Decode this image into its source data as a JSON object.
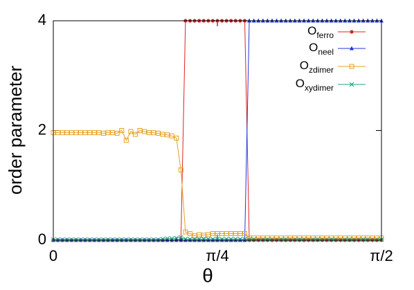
{
  "chart_data": {
    "type": "line",
    "xlabel": "θ",
    "ylabel": "order parameter",
    "x": [
      0,
      1.25,
      2.5,
      3.75,
      5,
      6.25,
      7.5,
      8.75,
      10,
      11.25,
      12.5,
      13.75,
      15,
      16.25,
      17.5,
      18.75,
      20,
      21.25,
      22.5,
      23.75,
      25,
      26.25,
      27.5,
      28.75,
      30,
      31.25,
      32.5,
      33.75,
      35,
      36.25,
      37.5,
      38.75,
      40,
      41.25,
      42.5,
      43.75,
      45,
      46.25,
      47.5,
      48.75,
      50,
      51.25,
      52.5,
      53.75,
      55,
      56.25,
      57.5,
      58.75,
      60,
      61.25,
      62.5,
      63.75,
      65,
      66.25,
      67.5,
      68.75,
      70,
      71.25,
      72.5,
      73.75,
      75,
      76.25,
      77.5,
      78.75,
      80,
      81.25,
      82.5,
      83.75,
      85,
      86.25,
      87.5,
      88.75,
      90
    ],
    "xlim": [
      0,
      90
    ],
    "xticks": [
      0,
      {
        "value": 45,
        "label": "π/4"
      },
      {
        "value": 90,
        "label": "π/2"
      }
    ],
    "ylim": [
      0,
      4
    ],
    "yticks": [
      0,
      2,
      4
    ],
    "legend_position": "top-right",
    "legend_symbol": "O",
    "series": [
      {
        "name": "ferro",
        "color": "#dd2222",
        "marker": "circle",
        "values": [
          0,
          0,
          0,
          0,
          0,
          0,
          0,
          0,
          0,
          0,
          0,
          0,
          0,
          0,
          0,
          0,
          0,
          0,
          0,
          0,
          0,
          0,
          0,
          0,
          0,
          0,
          0,
          0,
          0,
          4,
          4,
          4,
          4,
          4,
          4,
          4,
          4,
          4,
          4,
          4,
          4,
          4,
          4,
          0,
          0,
          0,
          0,
          0,
          0,
          0,
          0,
          0,
          0,
          0,
          0,
          0,
          0,
          0,
          0,
          0,
          0,
          0,
          0,
          0,
          0,
          0,
          0,
          0,
          0,
          0,
          0,
          0,
          0
        ]
      },
      {
        "name": "neel",
        "color": "#2233dd",
        "marker": "triangle",
        "values": [
          0,
          0,
          0,
          0,
          0,
          0,
          0,
          0,
          0,
          0,
          0,
          0,
          0,
          0,
          0,
          0,
          0,
          0,
          0,
          0,
          0,
          0,
          0,
          0,
          0,
          0,
          0,
          0,
          0,
          0,
          0,
          0,
          0,
          0,
          0,
          0,
          0,
          0,
          0,
          0,
          0,
          0,
          0,
          4,
          4,
          4,
          4,
          4,
          4,
          4,
          4,
          4,
          4,
          4,
          4,
          4,
          4,
          4,
          4,
          4,
          4,
          4,
          4,
          4,
          4,
          4,
          4,
          4,
          4,
          4,
          4,
          4,
          4
        ]
      },
      {
        "name": "zdimer",
        "color": "#e6a020",
        "marker": "square",
        "values": [
          1.96,
          1.96,
          1.96,
          1.96,
          1.96,
          1.96,
          1.96,
          1.96,
          1.96,
          1.96,
          1.96,
          1.95,
          1.96,
          1.96,
          1.95,
          2.0,
          1.82,
          1.98,
          1.93,
          2.0,
          1.98,
          1.96,
          1.96,
          1.95,
          1.93,
          1.92,
          1.9,
          1.86,
          1.28,
          0.15,
          0.12,
          0.08,
          0.1,
          0.09,
          0.1,
          0.12,
          0.12,
          0.12,
          0.12,
          0.12,
          0.12,
          0.12,
          0.12,
          0.04,
          0.04,
          0.04,
          0.04,
          0.04,
          0.04,
          0.04,
          0.04,
          0.04,
          0.04,
          0.04,
          0.04,
          0.04,
          0.04,
          0.04,
          0.04,
          0.04,
          0.04,
          0.04,
          0.04,
          0.04,
          0.04,
          0.04,
          0.04,
          0.04,
          0.04,
          0.04,
          0.04,
          0.04,
          0.04
        ]
      },
      {
        "name": "xydimer",
        "color": "#20a080",
        "marker": "cross",
        "values": [
          0.01,
          0.01,
          0.01,
          0.01,
          0.01,
          0.01,
          0.01,
          0.01,
          0.01,
          0.01,
          0.01,
          0.01,
          0.01,
          0.01,
          0.01,
          0.01,
          0.01,
          0.01,
          0.01,
          0.01,
          0.01,
          0.01,
          0.01,
          0.01,
          0.02,
          0.03,
          0.03,
          0.04,
          0.05,
          0.02,
          0.02,
          0.02,
          0.02,
          0.02,
          0.02,
          0.02,
          0.02,
          0.02,
          0.02,
          0.02,
          0.02,
          0.02,
          0.02,
          0.01,
          0.01,
          0.01,
          0.01,
          0.01,
          0.01,
          0.01,
          0.01,
          0.01,
          0.01,
          0.01,
          0.01,
          0.01,
          0.01,
          0.01,
          0.01,
          0.01,
          0.01,
          0.01,
          0.01,
          0.01,
          0.01,
          0.01,
          0.01,
          0.01,
          0.01,
          0.01,
          0.01,
          0.01,
          0.01
        ]
      }
    ]
  }
}
